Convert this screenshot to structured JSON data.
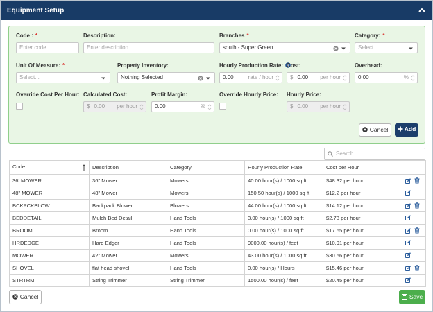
{
  "header": {
    "title": "Equipment Setup"
  },
  "form": {
    "required_mark": "*",
    "code": {
      "label": "Code :",
      "placeholder": "Enter code..."
    },
    "description": {
      "label": "Description:",
      "placeholder": "Enter description..."
    },
    "branches": {
      "label": "Branches",
      "value": "south - Super Green"
    },
    "category": {
      "label": "Category:",
      "placeholder": "Select..."
    },
    "unit": {
      "label": "Unit Of Measure:",
      "placeholder": "Select..."
    },
    "property": {
      "label": "Property Inventory:",
      "value": "Nothing Selected"
    },
    "rate": {
      "label": "Hourly Production Rate:",
      "value": "0.00",
      "suffix": "rate / hour"
    },
    "cost": {
      "label": "Cost:",
      "prefix": "$",
      "value": "0.00",
      "suffix": "per hour"
    },
    "overhead": {
      "label": "Overhead:",
      "value": "0.00",
      "suffix": "%"
    },
    "override_cost": {
      "label": "Override Cost Per Hour:"
    },
    "calculated_cost": {
      "label": "Calculated Cost:",
      "prefix": "$",
      "value": "0.00",
      "suffix": "per hour"
    },
    "profit_margin": {
      "label": "Profit Margin:",
      "value": "0.00",
      "suffix": "%"
    },
    "override_price": {
      "label": "Override Hourly Price:"
    },
    "hourly_price": {
      "label": "Hourly Price:",
      "prefix": "$",
      "value": "0.00",
      "suffix": "per hour"
    },
    "cancel": "Cancel",
    "add": "Add"
  },
  "search_placeholder": "Search...",
  "table": {
    "columns": [
      "Code",
      "Description",
      "Category",
      "Hourly Production Rate",
      "Cost per Hour"
    ],
    "rows": [
      [
        "36' MOWER",
        "36\" Mower",
        "Mowers",
        "40.00 hour(s) / 1000 sq ft",
        "$48.32 per hour"
      ],
      [
        "48\" MOWER",
        "48\" Mower",
        "Mowers",
        "150.50 hour(s) / 1000 sq ft",
        "$12.2 per hour"
      ],
      [
        "BCKPCKBLOW",
        "Backpack Blower",
        "Blowers",
        "44.00 hour(s) / 1000 sq ft",
        "$14.12 per hour"
      ],
      [
        "BEDDETAIL",
        "Mulch Bed Detail",
        "Hand Tools",
        "3.00 hour(s) / 1000 sq ft",
        "$2.73 per hour"
      ],
      [
        "BROOM",
        "Broom",
        "Hand Tools",
        "0.00 hour(s) / 1000 sq ft",
        "$17.65 per hour"
      ],
      [
        "HRDEDGE",
        "Hard Edger",
        "Hand Tools",
        "9000.00 hour(s) / feet",
        "$10.91 per hour"
      ],
      [
        "MOWER",
        "42\" Mower",
        "Mowers",
        "43.00 hour(s) / 1000 sq ft",
        "$30.56 per hour"
      ],
      [
        "SHOVEL",
        "flat head shovel",
        "Hand Tools",
        "0.00 hour(s) / Hours",
        "$15.46 per hour"
      ],
      [
        "STRTRM",
        "String Trimmer",
        "String Trimmer",
        "1500.00 hour(s) / feet",
        "$20.45 per hour"
      ]
    ]
  },
  "footer": {
    "cancel": "Cancel",
    "save": "Save"
  }
}
